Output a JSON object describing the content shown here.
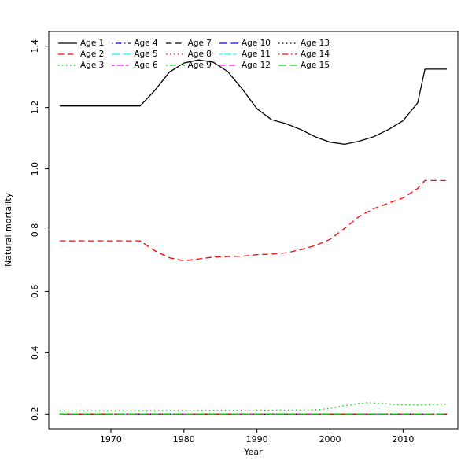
{
  "chart_data": {
    "type": "line",
    "title": "",
    "xlabel": "Year",
    "ylabel": "Natural mortality",
    "xlim": [
      1961.5,
      2017.5
    ],
    "ylim": [
      0.152,
      1.448
    ],
    "x_ticks": [
      1970,
      1980,
      1990,
      2000,
      2010
    ],
    "y_ticks": [
      0.2,
      0.4,
      0.6,
      0.8,
      1.0,
      1.2,
      1.4
    ],
    "y_tick_labels": [
      "0.2",
      "0.4",
      "0.6",
      "0.8",
      "1.0",
      "1.2",
      "1.4"
    ],
    "grid": false,
    "legend_position": "top-left",
    "legend_rows": 3,
    "legend_columns": 5,
    "series": [
      {
        "name": "Age 1",
        "color": "#000000",
        "linetype": "solid",
        "points": [
          [
            1963,
            1.205
          ],
          [
            1966,
            1.205
          ],
          [
            1970,
            1.205
          ],
          [
            1974,
            1.205
          ],
          [
            1976,
            1.255
          ],
          [
            1978,
            1.315
          ],
          [
            1980,
            1.345
          ],
          [
            1982,
            1.355
          ],
          [
            1984,
            1.348
          ],
          [
            1986,
            1.317
          ],
          [
            1988,
            1.26
          ],
          [
            1990,
            1.196
          ],
          [
            1992,
            1.16
          ],
          [
            1994,
            1.147
          ],
          [
            1996,
            1.128
          ],
          [
            1998,
            1.104
          ],
          [
            2000,
            1.087
          ],
          [
            2002,
            1.08
          ],
          [
            2004,
            1.09
          ],
          [
            2006,
            1.105
          ],
          [
            2008,
            1.128
          ],
          [
            2010,
            1.157
          ],
          [
            2012,
            1.215
          ],
          [
            2013,
            1.325
          ],
          [
            2016,
            1.325
          ]
        ]
      },
      {
        "name": "Age 2",
        "color": "#FF0000",
        "linetype": "dashed",
        "points": [
          [
            1963,
            0.765
          ],
          [
            1970,
            0.765
          ],
          [
            1974,
            0.765
          ],
          [
            1976,
            0.733
          ],
          [
            1978,
            0.71
          ],
          [
            1980,
            0.7
          ],
          [
            1982,
            0.706
          ],
          [
            1984,
            0.712
          ],
          [
            1986,
            0.714
          ],
          [
            1988,
            0.715
          ],
          [
            1990,
            0.72
          ],
          [
            1992,
            0.722
          ],
          [
            1994,
            0.726
          ],
          [
            1996,
            0.736
          ],
          [
            1998,
            0.75
          ],
          [
            2000,
            0.77
          ],
          [
            2002,
            0.806
          ],
          [
            2004,
            0.845
          ],
          [
            2006,
            0.87
          ],
          [
            2008,
            0.888
          ],
          [
            2010,
            0.905
          ],
          [
            2012,
            0.936
          ],
          [
            2013,
            0.962
          ],
          [
            2016,
            0.962
          ]
        ]
      },
      {
        "name": "Age 3",
        "color": "#00CD00",
        "linetype": "dotted",
        "points": [
          [
            1963,
            0.21
          ],
          [
            1990,
            0.212
          ],
          [
            1998,
            0.213
          ],
          [
            2000,
            0.218
          ],
          [
            2002,
            0.227
          ],
          [
            2004,
            0.234
          ],
          [
            2005,
            0.237
          ],
          [
            2007,
            0.235
          ],
          [
            2009,
            0.231
          ],
          [
            2011,
            0.23
          ],
          [
            2013,
            0.23
          ],
          [
            2016,
            0.232
          ]
        ]
      },
      {
        "name": "Age 4",
        "color": "#0000FF",
        "linetype": "dotdash",
        "points": [
          [
            1963,
            0.2
          ],
          [
            2016,
            0.2
          ]
        ]
      },
      {
        "name": "Age 5",
        "color": "#00FFFF",
        "linetype": "longdash",
        "points": [
          [
            1963,
            0.2
          ],
          [
            2016,
            0.2
          ]
        ]
      },
      {
        "name": "Age 6",
        "color": "#FF00FF",
        "linetype": "twodash",
        "points": [
          [
            1963,
            0.2
          ],
          [
            2016,
            0.2
          ]
        ]
      },
      {
        "name": "Age 7",
        "color": "#000000",
        "linetype": "dashed",
        "points": [
          [
            1963,
            0.2
          ],
          [
            2016,
            0.2
          ]
        ]
      },
      {
        "name": "Age 8",
        "color": "#FF0000",
        "linetype": "dotted",
        "points": [
          [
            1963,
            0.2
          ],
          [
            2016,
            0.2
          ]
        ]
      },
      {
        "name": "Age 9",
        "color": "#00CD00",
        "linetype": "dotdash",
        "points": [
          [
            1963,
            0.2
          ],
          [
            2016,
            0.2
          ]
        ]
      },
      {
        "name": "Age 10",
        "color": "#0000FF",
        "linetype": "longdash",
        "points": [
          [
            1963,
            0.2
          ],
          [
            2016,
            0.2
          ]
        ]
      },
      {
        "name": "Age 11",
        "color": "#00FFFF",
        "linetype": "twodash",
        "points": [
          [
            1963,
            0.2
          ],
          [
            2016,
            0.2
          ]
        ]
      },
      {
        "name": "Age 12",
        "color": "#FF00FF",
        "linetype": "dashed",
        "points": [
          [
            1963,
            0.2
          ],
          [
            2016,
            0.2
          ]
        ]
      },
      {
        "name": "Age 13",
        "color": "#000000",
        "linetype": "dotted",
        "points": [
          [
            1963,
            0.2
          ],
          [
            2016,
            0.2
          ]
        ]
      },
      {
        "name": "Age 14",
        "color": "#FF0000",
        "linetype": "dotdash",
        "points": [
          [
            1963,
            0.2
          ],
          [
            2016,
            0.2
          ]
        ]
      },
      {
        "name": "Age 15",
        "color": "#00CD00",
        "linetype": "longdash",
        "points": [
          [
            1963,
            0.2
          ],
          [
            2016,
            0.2
          ]
        ]
      }
    ]
  }
}
